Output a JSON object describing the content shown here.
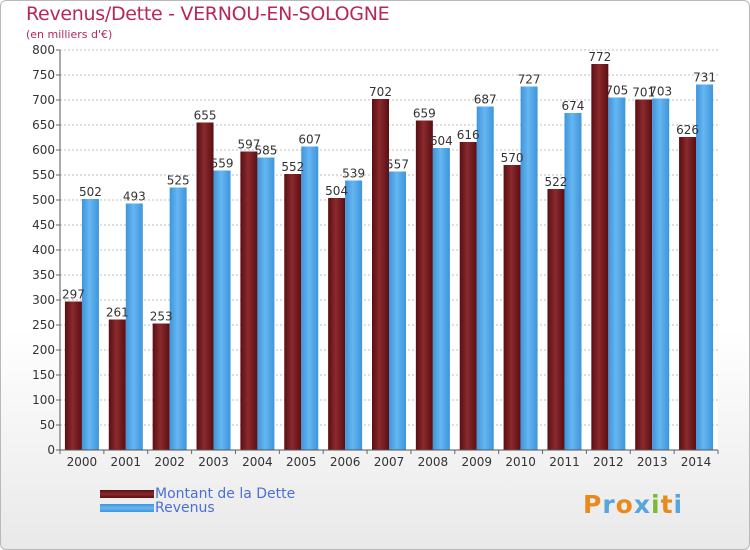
{
  "title": "Revenus/Dette - VERNOU-EN-SOLOGNE",
  "subtitle": "(en milliers d'€)",
  "logo": {
    "letters": [
      "P",
      "r",
      "o",
      "x",
      "i",
      "t",
      "i"
    ],
    "colors": [
      "#e98a1c",
      "#57a5dc",
      "#e98a1c",
      "#57a5dc",
      "#7bb93a",
      "#e98a1c",
      "#57a5dc"
    ]
  },
  "legend": [
    {
      "label": "Montant de la Dette",
      "color": "#7a1c1f"
    },
    {
      "label": "Revenus",
      "color": "#3f9de6"
    }
  ],
  "chart_data": {
    "type": "bar",
    "title": "Revenus/Dette - VERNOU-EN-SOLOGNE",
    "ylabel": "(en milliers d'€)",
    "categories": [
      "2000",
      "2001",
      "2002",
      "2003",
      "2004",
      "2005",
      "2006",
      "2007",
      "2008",
      "2009",
      "2010",
      "2011",
      "2012",
      "2013",
      "2014"
    ],
    "series": [
      {
        "name": "Montant de la Dette",
        "color": "#7a1c1f",
        "values": [
          297,
          261,
          253,
          655,
          597,
          552,
          504,
          702,
          659,
          616,
          570,
          522,
          772,
          701,
          626
        ]
      },
      {
        "name": "Revenus",
        "color": "#3f9de6",
        "values": [
          502,
          493,
          525,
          559,
          585,
          607,
          539,
          557,
          604,
          687,
          727,
          674,
          705,
          703,
          731
        ]
      }
    ],
    "ylim": [
      0,
      800
    ],
    "yticks": [
      0,
      50,
      100,
      150,
      200,
      250,
      300,
      350,
      400,
      450,
      500,
      550,
      600,
      650,
      700,
      750,
      800
    ],
    "grid": true,
    "legend_position": "bottom-left"
  }
}
